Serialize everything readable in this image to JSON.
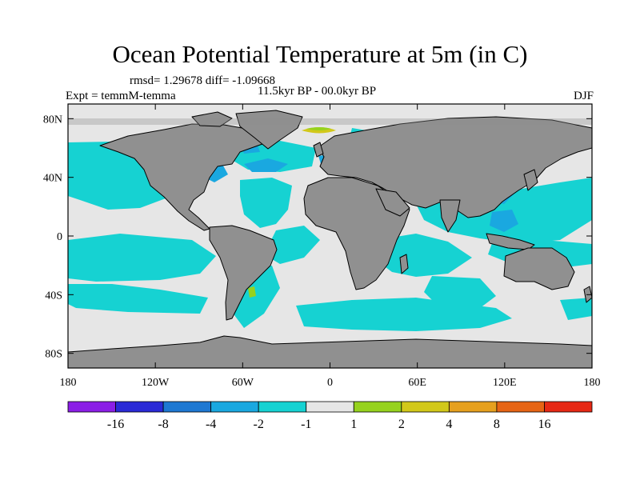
{
  "chart_data": {
    "type": "heatmap",
    "title": "Ocean Potential Temperature at 5m (in C)",
    "stats_text": "rmsd= 1.29678  diff= -1.09668",
    "experiment_text": "Expt = temmM-temma",
    "period_text": "11.5kyr BP - 00.0kyr BP",
    "season": "DJF",
    "x_ticks": [
      "180",
      "120W",
      "60W",
      "0",
      "60E",
      "120E",
      "180"
    ],
    "x_tick_lon": [
      -180,
      -120,
      -60,
      0,
      60,
      120,
      180
    ],
    "y_ticks": [
      "80N",
      "40N",
      "0",
      "40S",
      "80S"
    ],
    "y_tick_lat": [
      80,
      40,
      0,
      -40,
      -80
    ],
    "xlim": [
      -180,
      180
    ],
    "ylim": [
      -90,
      90
    ],
    "colorbar": {
      "labels": [
        "-16",
        "-8",
        "-4",
        "-2",
        "-1",
        "1",
        "2",
        "4",
        "8",
        "16"
      ],
      "colors": [
        "#8b1ee6",
        "#2a2ad6",
        "#1e78d2",
        "#1aa8e0",
        "#16d2d2",
        "#e6e6e6",
        "#96d21e",
        "#d2c81a",
        "#e6a01e",
        "#e66414",
        "#e62814"
      ]
    },
    "land_color": "#909090",
    "ocean_default_color": "#e6e6e6"
  }
}
